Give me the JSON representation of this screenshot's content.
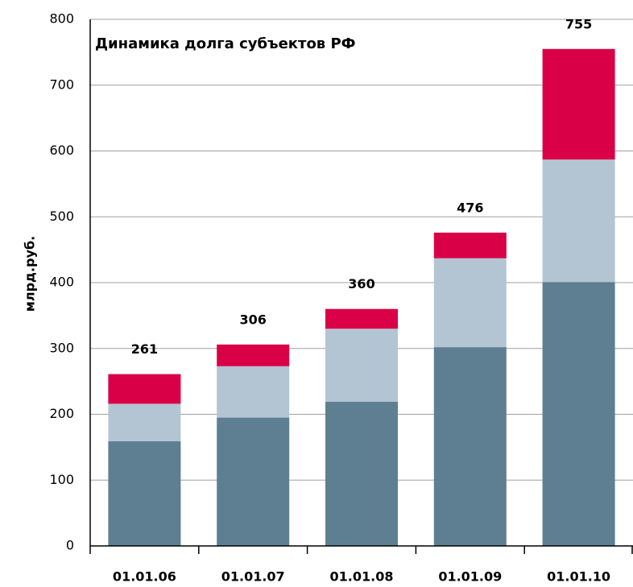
{
  "chart_data": {
    "type": "stacked_bar",
    "title": "Динамика долга субъектов РФ",
    "ylabel": "млрд.руб.",
    "categories": [
      "01.01.06",
      "01.01.07",
      "01.01.08",
      "01.01.09",
      "01.01.10"
    ],
    "series": [
      {
        "color": "#5d7f91",
        "values": [
          159,
          195,
          219,
          302,
          401
        ]
      },
      {
        "color": "#b3c5d3",
        "values": [
          57,
          78,
          111,
          135,
          186
        ]
      },
      {
        "color": "#d90048",
        "values": [
          45,
          33,
          30,
          39,
          168
        ]
      }
    ],
    "totals": [
      261,
      306,
      360,
      476,
      755
    ],
    "ylim": [
      0,
      800
    ],
    "yticks": [
      0,
      100,
      200,
      300,
      400,
      500,
      600,
      700,
      800
    ],
    "grid": true
  }
}
